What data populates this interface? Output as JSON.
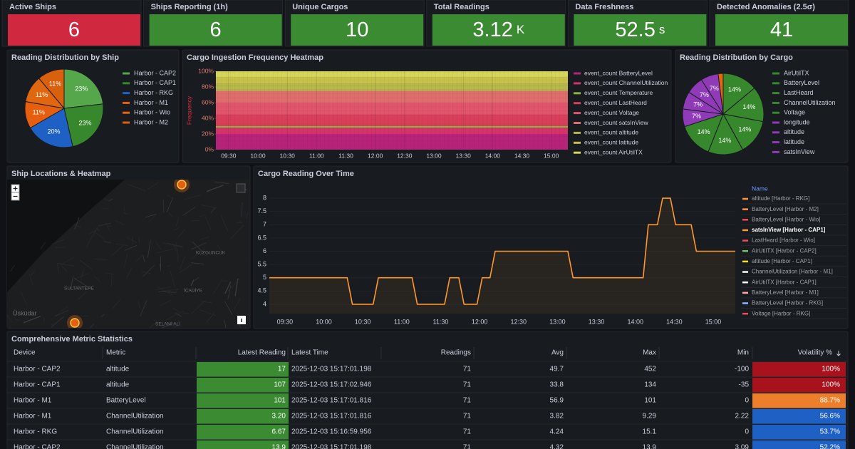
{
  "stats": [
    {
      "title": "Active Ships",
      "value": 6,
      "color": "#d0283f"
    },
    {
      "title": "Ships Reporting (1h)",
      "value": 6,
      "color": "#3b8b33"
    },
    {
      "title": "Unique Cargos",
      "value": 10,
      "color": "#3b8b33"
    },
    {
      "title": "Total Readings",
      "value": 3.12,
      "unit": "K",
      "color": "#3b8b33"
    },
    {
      "title": "Data Freshness",
      "value": 52.5,
      "unit": "s",
      "color": "#3b8b33"
    },
    {
      "title": "Detected Anomalies (2.5σ)",
      "value": 41,
      "color": "#3b8b33"
    }
  ],
  "chart_data": [
    {
      "type": "pie",
      "title": "Reading Distribution by Ship",
      "categories": [
        "Harbor - CAP2",
        "Harbor - CAP1",
        "Harbor - RKG",
        "Harbor - M1",
        "Harbor - Wio",
        "Harbor - M2"
      ],
      "values": [
        23,
        23,
        20,
        11,
        11,
        11
      ],
      "value_labels": [
        "23%",
        "23%",
        "20%",
        "11%",
        "11%",
        "11%"
      ],
      "colors": [
        "#56a64b",
        "#37872d",
        "#1f60c4",
        "#e55f0e",
        "#e0660f",
        "#d9600d"
      ]
    },
    {
      "type": "heatmap",
      "title": "Cargo Ingestion Frequency Heatmap",
      "y_label": "Frequency",
      "x": [
        "09:17",
        "09:30",
        "10:00",
        "10:30",
        "11:00",
        "11:30",
        "12:00",
        "12:30",
        "13:00",
        "13:30",
        "14:00",
        "14:30",
        "15:00"
      ],
      "xlim": [
        "09:17",
        "15:17"
      ],
      "xticks": [
        "09:30",
        "10:00",
        "10:30",
        "11:00",
        "11:30",
        "12:00",
        "12:30",
        "13:00",
        "13:30",
        "14:00",
        "14:30",
        "15:00"
      ],
      "ylim": [
        0,
        100
      ],
      "yticks": [
        {
          "value": 0,
          "label": "0%"
        },
        {
          "value": 20,
          "label": "20%"
        },
        {
          "value": 40,
          "label": "40%"
        },
        {
          "value": 60,
          "label": "60%"
        },
        {
          "value": 80,
          "label": "80%"
        },
        {
          "value": 100,
          "label": "100%"
        }
      ],
      "series": [
        {
          "name": "event_count BatteryLevel",
          "color": "#b8237a",
          "values": [
            20,
            20,
            20,
            20,
            20,
            20,
            20,
            20,
            20,
            20,
            20,
            20,
            20
          ]
        },
        {
          "name": "event_count ChannelUtilization",
          "color": "#d6336b",
          "values": [
            8,
            8,
            8,
            8,
            8,
            8,
            8,
            8,
            8,
            8,
            8,
            8,
            8
          ]
        },
        {
          "name": "event_count Temperature",
          "color": "#8ab43c",
          "values": [
            2,
            2,
            2,
            2,
            2,
            2,
            2,
            2,
            2,
            2,
            2,
            2,
            2
          ]
        },
        {
          "name": "event_count LastHeard",
          "color": "#d93f5b",
          "values": [
            15,
            15,
            15,
            15,
            15,
            15,
            15,
            15,
            15,
            15,
            15,
            15,
            15
          ]
        },
        {
          "name": "event_count Voltage",
          "color": "#e0556b",
          "values": [
            15,
            15,
            15,
            15,
            15,
            15,
            15,
            15,
            15,
            15,
            15,
            15,
            15
          ]
        },
        {
          "name": "event_count satsInView",
          "color": "#e06d6d",
          "values": [
            15,
            15,
            15,
            15,
            15,
            15,
            15,
            15,
            15,
            15,
            15,
            15,
            15
          ]
        },
        {
          "name": "event_count altitude",
          "color": "#b5b84a",
          "values": [
            9,
            9,
            9,
            9,
            9,
            9,
            9,
            9,
            9,
            9,
            9,
            9,
            9
          ]
        },
        {
          "name": "event_count latitude",
          "color": "#c9c24a",
          "values": [
            8,
            8,
            8,
            8,
            8,
            8,
            8,
            8,
            8,
            8,
            8,
            8,
            8
          ]
        },
        {
          "name": "event_count AirUtilTX",
          "color": "#d6d65a",
          "values": [
            8,
            8,
            8,
            8,
            8,
            8,
            8,
            8,
            8,
            8,
            8,
            8,
            8
          ]
        }
      ]
    },
    {
      "type": "pie",
      "title": "Reading Distribution by Cargo",
      "categories": [
        "AirUtilTX",
        "BatteryLevel",
        "LastHeard",
        "ChannelUtilization",
        "Voltage",
        "longitude",
        "altitude",
        "latitude",
        "satsInView",
        null
      ],
      "values": [
        14,
        14,
        14,
        14,
        14,
        7,
        7,
        7,
        7,
        2
      ],
      "value_labels": [
        "14%",
        "14%",
        "14%",
        "14%",
        "14%",
        "7%",
        "7%",
        "7%",
        "7%",
        null
      ],
      "colors": [
        "#37872d",
        "#37872d",
        "#37872d",
        "#37872d",
        "#37872d",
        "#8f3bb8",
        "#8f3bb8",
        "#8f3bb8",
        "#8f3bb8",
        "#e0660f"
      ]
    },
    {
      "type": "line",
      "title": "Cargo Reading Over Time",
      "legend_title": "Name",
      "x": [
        "09:18",
        "10:18",
        "10:22",
        "10:38",
        "10:42",
        "11:08",
        "11:12",
        "11:33",
        "11:37",
        "11:44",
        "11:48",
        "11:58",
        "12:02",
        "12:08",
        "12:12",
        "13:08",
        "13:12",
        "14:06",
        "14:10",
        "14:17",
        "14:21",
        "14:27",
        "14:31",
        "14:43",
        "14:47",
        "15:17"
      ],
      "xlim": [
        "09:18",
        "15:17"
      ],
      "xticks": [
        "09:30",
        "10:00",
        "10:30",
        "11:00",
        "11:30",
        "12:00",
        "12:30",
        "13:00",
        "13:30",
        "14:00",
        "14:30",
        "15:00"
      ],
      "ylim": [
        3.65,
        8.35
      ],
      "yticks": [
        4,
        4.5,
        5,
        5.5,
        6,
        6.5,
        7,
        7.5,
        8
      ],
      "grid": true,
      "series": [
        {
          "name": "altitude [Harbor - RKG]",
          "color": "#ff9830"
        },
        {
          "name": "BatteryLevel [Harbor - M2]",
          "color": "#ff9830"
        },
        {
          "name": "BatteryLevel [Harbor - Wio]",
          "color": "#f2495c"
        },
        {
          "name": "satsInView [Harbor - CAP1]",
          "color": "#ff9830",
          "values": [
            5,
            5,
            4,
            4,
            5,
            5,
            4,
            4,
            5,
            5,
            4,
            4,
            5,
            5,
            6,
            6,
            5,
            5,
            7,
            7,
            8,
            8,
            7,
            7,
            6,
            6
          ]
        },
        {
          "name": "LastHeard [Harbor - Wio]",
          "color": "#f2495c"
        },
        {
          "name": "AirUtilTX [Harbor - CAP2]",
          "color": "#73bf69"
        },
        {
          "name": "altitude [Harbor - CAP1]",
          "color": "#fade2a"
        },
        {
          "name": "ChannelUtilization [Harbor - M1]",
          "color": "#ffffff"
        },
        {
          "name": "AirUtilTX [Harbor - CAP1]",
          "color": "#ffffff"
        },
        {
          "name": "BatteryLevel [Harbor - M1]",
          "color": "#ffa6b0"
        },
        {
          "name": "BatteryLevel [Harbor - RKG]",
          "color": "#8ab8ff"
        },
        {
          "name": "Voltage [Harbor - RKG]",
          "color": "#f2495c"
        }
      ]
    }
  ],
  "map": {
    "title": "Ship Locations & Heatmap",
    "labels": [
      "KUZGUNCUK",
      "SULTANTEPE",
      "İCADİYE",
      "Üsküdar",
      "SELAMİ ALİ"
    ]
  },
  "table": {
    "title": "Comprehensive Metric Statistics",
    "columns": [
      "Device",
      "Metric",
      "Latest Reading",
      "Latest Time",
      "Readings",
      "Avg",
      "Max",
      "Min",
      "Volatility %"
    ],
    "rows": [
      [
        "Harbor - CAP2",
        "altitude",
        "17",
        "2025-12-03 15:17:01.198",
        "71",
        "49.7",
        "452",
        "-100",
        "100%"
      ],
      [
        "Harbor - CAP1",
        "altitude",
        "107",
        "2025-12-03 15:17:02.946",
        "71",
        "33.8",
        "134",
        "-35",
        "100%"
      ],
      [
        "Harbor - M1",
        "BatteryLevel",
        "101",
        "2025-12-03 15:17:01.816",
        "71",
        "56.9",
        "101",
        "0",
        "88.7%"
      ],
      [
        "Harbor - M1",
        "ChannelUtilization",
        "3.20",
        "2025-12-03 15:17:01.816",
        "71",
        "3.82",
        "9.29",
        "2.22",
        "56.6%"
      ],
      [
        "Harbor - RKG",
        "ChannelUtilization",
        "6.67",
        "2025-12-03 15:16:59.956",
        "71",
        "4.24",
        "15.1",
        "0",
        "53.7%"
      ],
      [
        "Harbor - CAP2",
        "ChannelUtilization",
        "13.9",
        "2025-12-03 15:17:01.198",
        "71",
        "4.32",
        "13.9",
        "3.09",
        "52.2%"
      ]
    ],
    "reading_color": "#3b8b33",
    "volatility_colors": [
      "#a8121d",
      "#a8121d",
      "#ed7f2c",
      "#1f60c4",
      "#1f60c4",
      "#1f60c4"
    ]
  }
}
